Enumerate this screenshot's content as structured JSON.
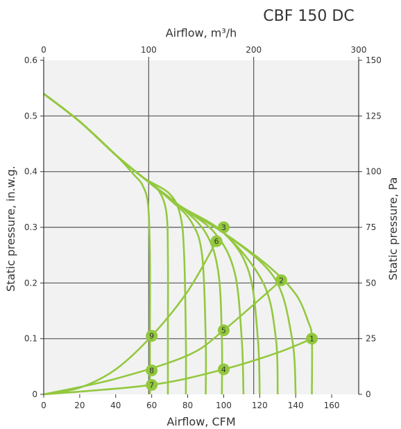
{
  "chart_data": {
    "type": "line",
    "title": "CBF 150 DC",
    "xlabel": "Airflow, CFM",
    "x2label": "Airflow, m³/h",
    "ylabel": "Static pressure, in.w.g.",
    "y2label": "Static pressure, Pa",
    "xlim": [
      0,
      175
    ],
    "ylim": [
      0,
      0.6
    ],
    "x_ticks": [
      "0",
      "20",
      "40",
      "60",
      "80",
      "100",
      "120",
      "140",
      "160"
    ],
    "x2_ticks": [
      "0",
      "100",
      "200",
      "300"
    ],
    "y_ticks": [
      "0",
      "0.1",
      "0.2",
      "0.3",
      "0.4",
      "0.5",
      "0.6"
    ],
    "y2_ticks": [
      "0",
      "25",
      "50",
      "75",
      "100",
      "125",
      "150"
    ],
    "grid": true,
    "colors": {
      "curve": "#93c83e",
      "grid": "#555555",
      "plot_bg": "#f2f2f2",
      "text": "#333333"
    },
    "fan_curves": [
      {
        "x": [
          0,
          20,
          40,
          50,
          55,
          58,
          59,
          59,
          59
        ],
        "y": [
          0.54,
          0.49,
          0.43,
          0.395,
          0.375,
          0.34,
          0.25,
          0.1,
          0
        ]
      },
      {
        "x": [
          0,
          20,
          40,
          55,
          63,
          68,
          69,
          69,
          69
        ],
        "y": [
          0.54,
          0.49,
          0.43,
          0.39,
          0.37,
          0.33,
          0.25,
          0.1,
          0
        ]
      },
      {
        "x": [
          0,
          20,
          40,
          55,
          70,
          76,
          78,
          79,
          79
        ],
        "y": [
          0.54,
          0.49,
          0.43,
          0.39,
          0.36,
          0.32,
          0.25,
          0.1,
          0
        ]
      },
      {
        "x": [
          0,
          20,
          40,
          55,
          70,
          82,
          88,
          90,
          90
        ],
        "y": [
          0.54,
          0.49,
          0.43,
          0.39,
          0.35,
          0.31,
          0.25,
          0.1,
          0
        ]
      },
      {
        "x": [
          0,
          20,
          40,
          55,
          75,
          90,
          97,
          99,
          99
        ],
        "y": [
          0.54,
          0.49,
          0.43,
          0.39,
          0.34,
          0.29,
          0.22,
          0.1,
          0
        ]
      },
      {
        "x": [
          0,
          20,
          40,
          55,
          75,
          95,
          106,
          110,
          111
        ],
        "y": [
          0.54,
          0.49,
          0.43,
          0.39,
          0.34,
          0.29,
          0.22,
          0.1,
          0
        ]
      },
      {
        "x": [
          0,
          20,
          40,
          55,
          75,
          100,
          114,
          119,
          120
        ],
        "y": [
          0.54,
          0.49,
          0.43,
          0.39,
          0.34,
          0.29,
          0.22,
          0.1,
          0
        ]
      },
      {
        "x": [
          0,
          20,
          40,
          55,
          75,
          100,
          122,
          129,
          130
        ],
        "y": [
          0.54,
          0.49,
          0.43,
          0.39,
          0.34,
          0.29,
          0.2,
          0.1,
          0
        ]
      },
      {
        "x": [
          0,
          20,
          40,
          55,
          75,
          100,
          128,
          138,
          140
        ],
        "y": [
          0.54,
          0.49,
          0.43,
          0.39,
          0.34,
          0.29,
          0.21,
          0.1,
          0
        ]
      },
      {
        "x": [
          0,
          20,
          40,
          55,
          75,
          100,
          125,
          140,
          147,
          149,
          149
        ],
        "y": [
          0.54,
          0.49,
          0.43,
          0.39,
          0.34,
          0.29,
          0.23,
          0.18,
          0.13,
          0.1,
          0
        ]
      }
    ],
    "system_curves": [
      {
        "x": [
          0,
          20,
          40,
          60,
          80,
          96
        ],
        "y": [
          0,
          0.012,
          0.045,
          0.105,
          0.185,
          0.275
        ]
      },
      {
        "x": [
          0,
          40,
          80,
          100,
          132
        ],
        "y": [
          0,
          0.028,
          0.07,
          0.115,
          0.205
        ]
      },
      {
        "x": [
          0,
          60,
          100,
          130,
          149
        ],
        "y": [
          0,
          0.017,
          0.045,
          0.075,
          0.1
        ]
      }
    ],
    "points": [
      {
        "label": "1",
        "x": 149,
        "y": 0.1
      },
      {
        "label": "2",
        "x": 132,
        "y": 0.205
      },
      {
        "label": "3",
        "x": 100,
        "y": 0.3
      },
      {
        "label": "4",
        "x": 100,
        "y": 0.045
      },
      {
        "label": "5",
        "x": 100,
        "y": 0.115
      },
      {
        "label": "6",
        "x": 96,
        "y": 0.275
      },
      {
        "label": "7",
        "x": 60,
        "y": 0.017
      },
      {
        "label": "8",
        "x": 60,
        "y": 0.043
      },
      {
        "label": "9",
        "x": 60,
        "y": 0.105
      }
    ]
  }
}
